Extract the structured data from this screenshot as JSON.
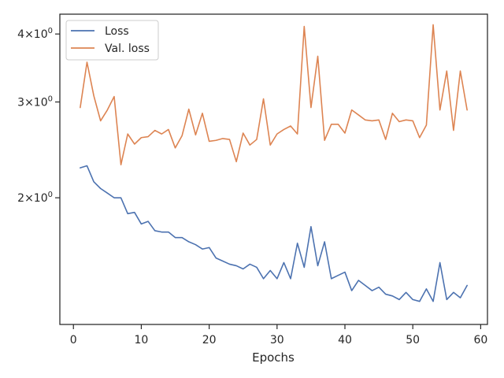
{
  "chart_data": {
    "type": "line",
    "title": "",
    "xlabel": "Epochs",
    "ylabel": "",
    "x_scale": "linear",
    "y_scale": "log",
    "xlim": [
      -2,
      61
    ],
    "ylim": [
      1.17,
      4.35
    ],
    "x_ticks": [
      0,
      10,
      20,
      30,
      40,
      50,
      60
    ],
    "x_tick_labels": [
      "0",
      "10",
      "20",
      "30",
      "40",
      "50",
      "60"
    ],
    "y_ticks": [
      2,
      3,
      4
    ],
    "y_tick_labels": [
      {
        "base": "2",
        "exp": "0"
      },
      {
        "base": "3",
        "exp": "0"
      },
      {
        "base": "4",
        "exp": "0"
      }
    ],
    "grid": false,
    "legend_position": "top-left",
    "x": [
      1,
      2,
      3,
      4,
      5,
      6,
      7,
      8,
      9,
      10,
      11,
      12,
      13,
      14,
      15,
      16,
      17,
      18,
      19,
      20,
      21,
      22,
      23,
      24,
      25,
      26,
      27,
      28,
      29,
      30,
      31,
      32,
      33,
      34,
      35,
      36,
      37,
      38,
      39,
      40,
      41,
      42,
      43,
      44,
      45,
      46,
      47,
      48,
      49,
      50,
      51,
      52,
      53,
      54,
      55,
      56,
      57,
      58
    ],
    "series": [
      {
        "name": "Loss",
        "color": "#4c72b0",
        "values": [
          2.27,
          2.29,
          2.14,
          2.08,
          2.04,
          2.0,
          2.0,
          1.87,
          1.88,
          1.79,
          1.81,
          1.74,
          1.73,
          1.73,
          1.69,
          1.69,
          1.66,
          1.64,
          1.61,
          1.62,
          1.55,
          1.53,
          1.51,
          1.5,
          1.48,
          1.51,
          1.49,
          1.42,
          1.47,
          1.42,
          1.52,
          1.42,
          1.65,
          1.49,
          1.77,
          1.5,
          1.66,
          1.42,
          1.44,
          1.46,
          1.35,
          1.41,
          1.38,
          1.35,
          1.37,
          1.33,
          1.32,
          1.3,
          1.34,
          1.3,
          1.29,
          1.36,
          1.29,
          1.52,
          1.3,
          1.34,
          1.31,
          1.38
        ]
      },
      {
        "name": "Val. loss",
        "color": "#dd8452",
        "values": [
          2.93,
          3.55,
          3.08,
          2.77,
          2.9,
          3.07,
          2.3,
          2.62,
          2.51,
          2.58,
          2.59,
          2.66,
          2.62,
          2.67,
          2.47,
          2.6,
          2.91,
          2.61,
          2.86,
          2.54,
          2.55,
          2.57,
          2.56,
          2.33,
          2.63,
          2.5,
          2.56,
          3.04,
          2.5,
          2.62,
          2.67,
          2.71,
          2.62,
          4.13,
          2.93,
          3.64,
          2.55,
          2.73,
          2.73,
          2.63,
          2.9,
          2.84,
          2.78,
          2.77,
          2.78,
          2.56,
          2.86,
          2.76,
          2.78,
          2.77,
          2.58,
          2.72,
          4.16,
          2.9,
          3.42,
          2.66,
          3.42,
          2.9
        ]
      }
    ]
  }
}
